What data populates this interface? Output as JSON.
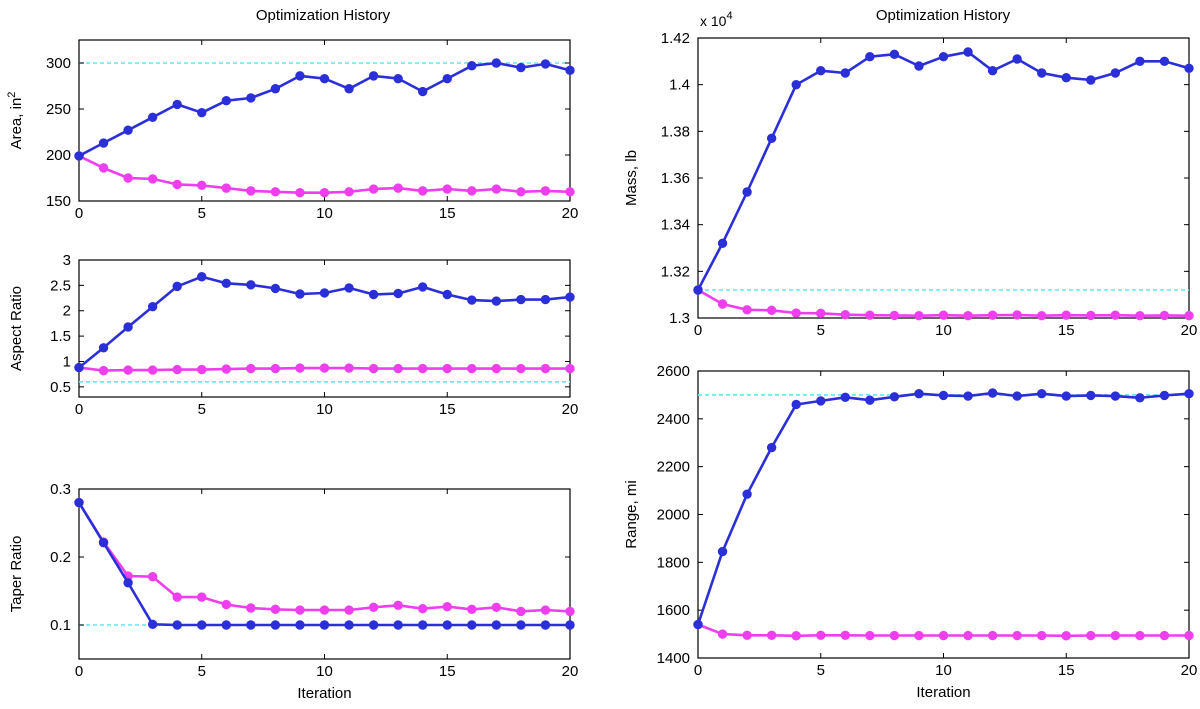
{
  "figure": {
    "left_title": "Optimization History",
    "right_title": "Optimization History",
    "xlabel": "Iteration"
  },
  "colors": {
    "blue": "#2b2fd8",
    "magenta": "#ee3fee",
    "cyan": "#5fe8ef"
  },
  "chart_data": [
    {
      "type": "line",
      "title": "Optimization History",
      "ylabel": "Area, in",
      "ylabel_sup": "2",
      "xlim": [
        0,
        20
      ],
      "ylim": [
        150,
        325
      ],
      "x_ticks": [
        0,
        5,
        10,
        15,
        20
      ],
      "y_ticks": [
        150,
        200,
        250,
        300
      ],
      "y_tick_labels": [
        "150",
        "200",
        "250",
        "300"
      ],
      "reference_line": 300,
      "x": [
        0,
        1,
        2,
        3,
        4,
        5,
        6,
        7,
        8,
        9,
        10,
        11,
        12,
        13,
        14,
        15,
        16,
        17,
        18,
        19,
        20
      ],
      "series": [
        {
          "color": "blue",
          "values": [
            199,
            213,
            227,
            241,
            255,
            246,
            259,
            262,
            272,
            286,
            283,
            272,
            286,
            283,
            269,
            283,
            297,
            300,
            295,
            299,
            292
          ]
        },
        {
          "color": "magenta",
          "values": [
            199,
            186,
            175,
            174,
            168,
            167,
            164,
            161,
            160,
            159,
            159,
            160,
            163,
            164,
            161,
            163,
            161,
            163,
            160,
            161,
            160
          ]
        }
      ]
    },
    {
      "type": "line",
      "ylabel": "Aspect Ratio",
      "xlim": [
        0,
        20
      ],
      "ylim": [
        0.3,
        3
      ],
      "x_ticks": [
        0,
        5,
        10,
        15,
        20
      ],
      "y_ticks": [
        0.5,
        1,
        1.5,
        2,
        2.5,
        3
      ],
      "y_tick_labels": [
        "0.5",
        "1",
        "1.5",
        "2",
        "2.5",
        "3"
      ],
      "reference_line": 0.6,
      "x": [
        0,
        1,
        2,
        3,
        4,
        5,
        6,
        7,
        8,
        9,
        10,
        11,
        12,
        13,
        14,
        15,
        16,
        17,
        18,
        19,
        20
      ],
      "series": [
        {
          "color": "blue",
          "values": [
            0.88,
            1.27,
            1.68,
            2.08,
            2.48,
            2.67,
            2.54,
            2.51,
            2.44,
            2.33,
            2.35,
            2.45,
            2.32,
            2.34,
            2.47,
            2.32,
            2.21,
            2.19,
            2.22,
            2.22,
            2.27
          ]
        },
        {
          "color": "magenta",
          "values": [
            0.88,
            0.82,
            0.83,
            0.83,
            0.84,
            0.84,
            0.85,
            0.86,
            0.86,
            0.87,
            0.87,
            0.87,
            0.86,
            0.86,
            0.86,
            0.86,
            0.86,
            0.86,
            0.86,
            0.86,
            0.86
          ]
        }
      ]
    },
    {
      "type": "line",
      "ylabel": "Taper Ratio",
      "xlim": [
        0,
        20
      ],
      "ylim": [
        0.05,
        0.3
      ],
      "x_ticks": [
        0,
        5,
        10,
        15,
        20
      ],
      "y_ticks": [
        0.1,
        0.2,
        0.3
      ],
      "y_tick_labels": [
        "0.1",
        "0.2",
        "0.3"
      ],
      "reference_line": 0.1,
      "xlabel": "Iteration",
      "x": [
        0,
        1,
        2,
        3,
        4,
        5,
        6,
        7,
        8,
        9,
        10,
        11,
        12,
        13,
        14,
        15,
        16,
        17,
        18,
        19,
        20
      ],
      "series": [
        {
          "color": "blue",
          "values": [
            0.28,
            0.221,
            0.162,
            0.101,
            0.1,
            0.1,
            0.1,
            0.1,
            0.1,
            0.1,
            0.1,
            0.1,
            0.1,
            0.1,
            0.1,
            0.1,
            0.1,
            0.1,
            0.1,
            0.1,
            0.1
          ]
        },
        {
          "color": "magenta",
          "values": [
            0.28,
            0.222,
            0.172,
            0.171,
            0.141,
            0.141,
            0.13,
            0.125,
            0.123,
            0.122,
            0.122,
            0.122,
            0.126,
            0.129,
            0.124,
            0.127,
            0.123,
            0.126,
            0.12,
            0.122,
            0.12
          ]
        }
      ]
    },
    {
      "type": "line",
      "title": "Optimization History",
      "ylabel": "Mass, lb",
      "exponent_label": "x 10",
      "exponent_sup": "4",
      "xlim": [
        0,
        20
      ],
      "ylim": [
        1.3,
        1.42
      ],
      "x_ticks": [
        0,
        5,
        10,
        15,
        20
      ],
      "y_ticks": [
        1.3,
        1.32,
        1.34,
        1.36,
        1.38,
        1.4,
        1.42
      ],
      "y_tick_labels": [
        "1.3",
        "1.32",
        "1.34",
        "1.36",
        "1.38",
        "1.4",
        "1.42"
      ],
      "reference_line": 1.312,
      "x": [
        0,
        1,
        2,
        3,
        4,
        5,
        6,
        7,
        8,
        9,
        10,
        11,
        12,
        13,
        14,
        15,
        16,
        17,
        18,
        19,
        20
      ],
      "series": [
        {
          "color": "blue",
          "values": [
            1.312,
            1.332,
            1.354,
            1.377,
            1.4,
            1.406,
            1.405,
            1.412,
            1.413,
            1.408,
            1.412,
            1.414,
            1.406,
            1.411,
            1.405,
            1.403,
            1.402,
            1.405,
            1.41,
            1.41,
            1.407
          ]
        },
        {
          "color": "magenta",
          "values": [
            1.312,
            1.306,
            1.3035,
            1.3033,
            1.3021,
            1.302,
            1.3014,
            1.3012,
            1.3011,
            1.301,
            1.3012,
            1.301,
            1.3012,
            1.3013,
            1.301,
            1.3012,
            1.3011,
            1.3012,
            1.301,
            1.3011,
            1.301
          ]
        }
      ]
    },
    {
      "type": "line",
      "ylabel": "Range, mi",
      "xlim": [
        0,
        20
      ],
      "ylim": [
        1400,
        2600
      ],
      "x_ticks": [
        0,
        5,
        10,
        15,
        20
      ],
      "y_ticks": [
        1400,
        1600,
        1800,
        2000,
        2200,
        2400,
        2600
      ],
      "y_tick_labels": [
        "1400",
        "1600",
        "1800",
        "2000",
        "2200",
        "2400",
        "2600"
      ],
      "reference_line": 2500,
      "xlabel": "Iteration",
      "x": [
        0,
        1,
        2,
        3,
        4,
        5,
        6,
        7,
        8,
        9,
        10,
        11,
        12,
        13,
        14,
        15,
        16,
        17,
        18,
        19,
        20
      ],
      "series": [
        {
          "color": "blue",
          "values": [
            1540,
            1845,
            2085,
            2280,
            2460,
            2475,
            2490,
            2478,
            2492,
            2505,
            2498,
            2495,
            2508,
            2495,
            2505,
            2495,
            2498,
            2495,
            2488,
            2498,
            2505
          ]
        },
        {
          "color": "magenta",
          "values": [
            1540,
            1500,
            1495,
            1495,
            1493,
            1495,
            1495,
            1494,
            1494,
            1494,
            1494,
            1494,
            1494,
            1494,
            1494,
            1493,
            1494,
            1494,
            1494,
            1494,
            1494
          ]
        }
      ]
    }
  ]
}
